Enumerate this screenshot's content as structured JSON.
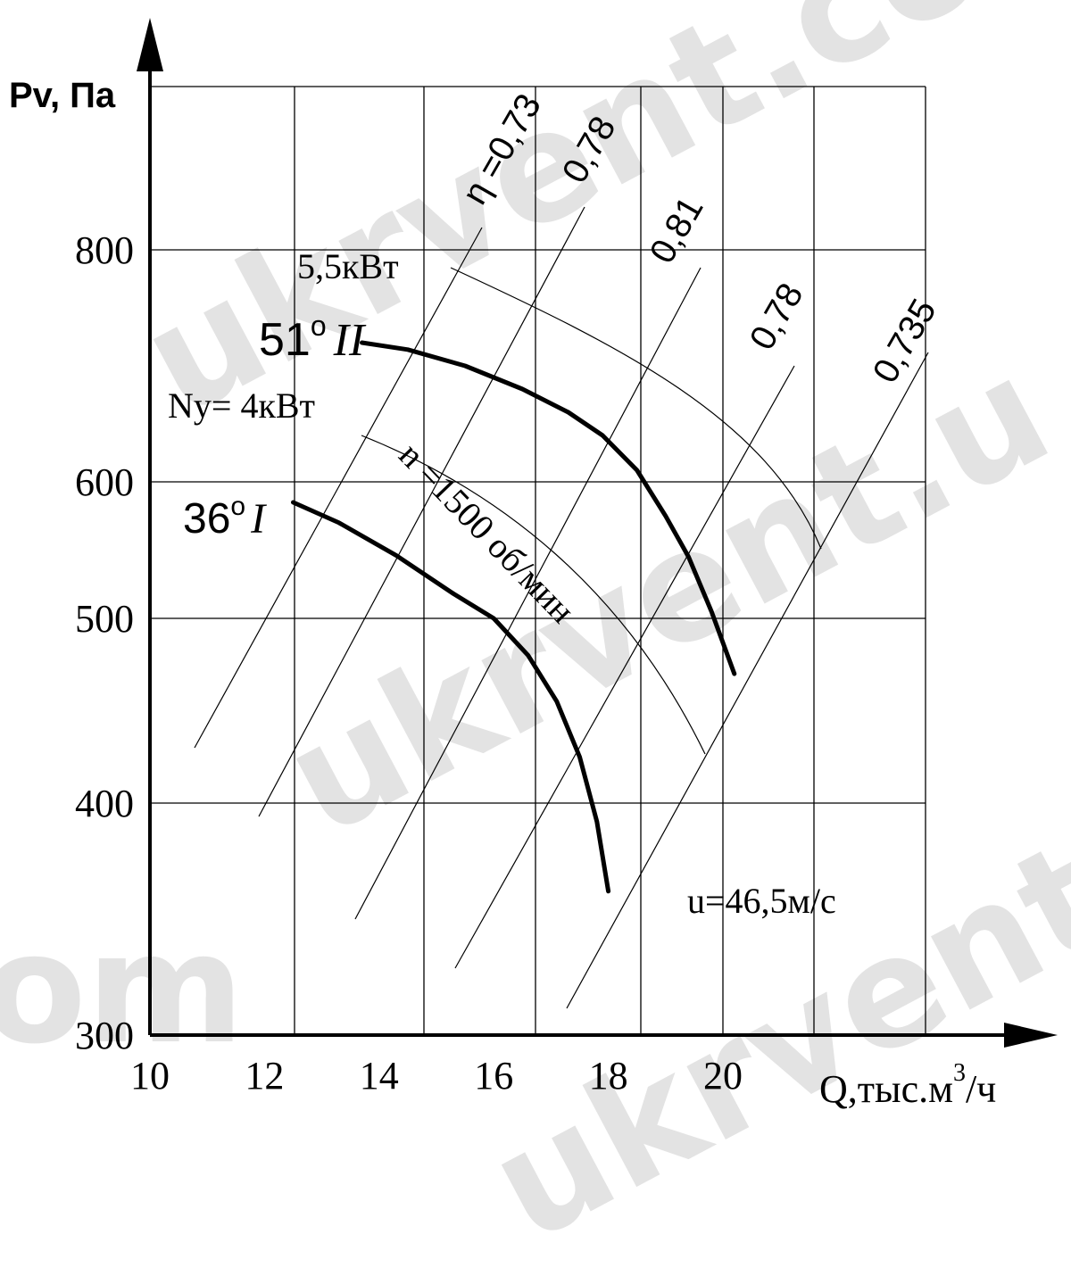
{
  "watermarks": [
    "ukrvent.co",
    "ukrvent.u",
    "ukrvent.",
    "om",
    "ukrvent"
  ],
  "chart_data": {
    "type": "line",
    "title": "",
    "ylabel": "Pv, Па",
    "xlabel": "Q,тыс.м³/ч",
    "xlabel_main": "Q,тыс.м",
    "xlabel_sup": "3",
    "xlabel_tail": "/ч",
    "xlim": [
      10,
      22.5
    ],
    "ylim": [
      300,
      900
    ],
    "y_scale": "nonuniform",
    "x_ticks": [
      10,
      12,
      14,
      16,
      18,
      20
    ],
    "y_ticks": [
      300,
      400,
      500,
      600,
      800
    ],
    "grid": true,
    "series": [
      {
        "name": "51° II",
        "label_num": "51",
        "label_deg": "o",
        "label_roman": "II",
        "x": [
          13.7,
          14.5,
          15.5,
          16.5,
          17.3,
          17.9,
          18.5,
          19.0,
          19.4,
          19.8,
          20.2
        ],
        "y": [
          720,
          714,
          700,
          680,
          660,
          640,
          610,
          575,
          545,
          505,
          470
        ]
      },
      {
        "name": "36° I",
        "label_num": "36",
        "label_deg": "o",
        "label_roman": "I",
        "x": [
          12.5,
          13.3,
          14.3,
          15.3,
          16.0,
          16.6,
          17.1,
          17.5,
          17.8,
          18.0
        ],
        "y": [
          585,
          570,
          546,
          518,
          500,
          480,
          455,
          425,
          392,
          362
        ]
      }
    ],
    "efficiency_labels": [
      "η =0,73",
      "0,78",
      "0,81",
      "0,78",
      "0,735"
    ],
    "annotations": {
      "power_55": "5,5кВт",
      "power_4": "Ny= 4кВт",
      "speed": "n =1500 об/мин",
      "tip_speed": "u=46,5м/с"
    }
  }
}
